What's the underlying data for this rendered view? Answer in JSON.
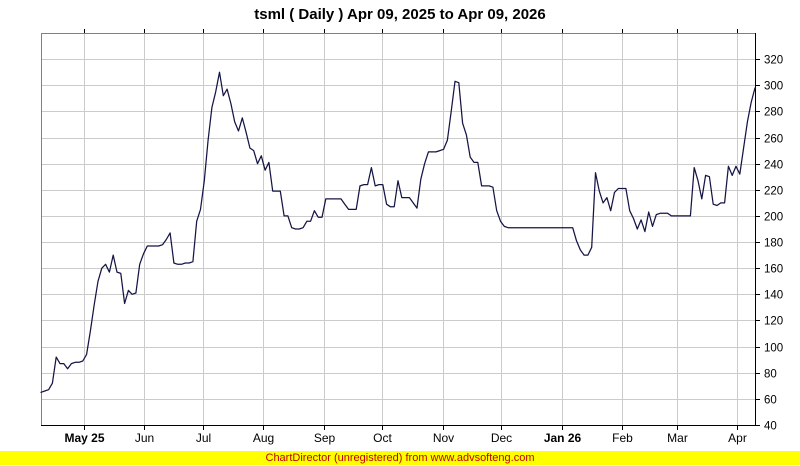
{
  "header": {
    "title": "tsml ( Daily ) Apr 09, 2025 to Apr 09, 2026"
  },
  "footer": {
    "text": "ChartDirector (unregistered) from www.advsofteng.com",
    "background_color": "#ffff00",
    "text_color": "#c00000"
  },
  "chart_data": {
    "type": "line",
    "title": "tsml ( Daily ) Apr 09, 2025 to Apr 09, 2026",
    "xlabel": "",
    "ylabel": "",
    "grid": true,
    "grid_color": "#cbcbcb",
    "background": "#ffffff",
    "border_top_left_color": "#808080",
    "axis_color": "#000000",
    "legend": "none",
    "y_axis": {
      "side": "right",
      "min": 40,
      "max": 340,
      "tick_interval": 20,
      "ticks": [
        40,
        60,
        80,
        100,
        120,
        140,
        160,
        180,
        200,
        220,
        240,
        260,
        280,
        300,
        320
      ]
    },
    "x_axis": {
      "range": "Apr 09, 2025 to Apr 09, 2026",
      "ticks": [
        {
          "label": "May 25",
          "bold": true,
          "pos": 0.0601
        },
        {
          "label": "Jun",
          "bold": false,
          "pos": 0.1448
        },
        {
          "label": "Jul",
          "bold": false,
          "pos": 0.2268
        },
        {
          "label": "Aug",
          "bold": false,
          "pos": 0.3115
        },
        {
          "label": "Sep",
          "bold": false,
          "pos": 0.3962
        },
        {
          "label": "Oct",
          "bold": false,
          "pos": 0.4781
        },
        {
          "label": "Nov",
          "bold": false,
          "pos": 0.5628
        },
        {
          "label": "Dec",
          "bold": false,
          "pos": 0.6448
        },
        {
          "label": "Jan 26",
          "bold": true,
          "pos": 0.7295
        },
        {
          "label": "Feb",
          "bold": false,
          "pos": 0.8142
        },
        {
          "label": "Mar",
          "bold": false,
          "pos": 0.8907
        },
        {
          "label": "Apr",
          "bold": false,
          "pos": 0.9754
        }
      ]
    },
    "series": [
      {
        "name": "tsml daily close",
        "color": "#151545",
        "values": [
          65,
          66,
          67,
          72,
          92,
          87,
          87,
          83,
          87,
          88,
          88,
          89,
          94,
          112,
          132,
          150,
          160,
          163,
          157,
          170,
          157,
          156,
          133,
          143,
          140,
          141,
          163,
          171,
          177,
          177,
          177,
          177,
          178,
          182,
          187,
          164,
          163,
          163,
          164,
          164,
          165,
          196,
          205,
          227,
          258,
          283,
          295,
          310,
          292,
          297,
          286,
          272,
          265,
          275,
          264,
          252,
          250,
          240,
          246,
          235,
          241,
          219,
          219,
          219,
          200,
          200,
          191,
          190,
          190,
          191,
          196,
          196,
          204,
          199,
          199,
          213,
          213,
          213,
          213,
          213,
          209,
          205,
          205,
          205,
          223,
          224,
          224,
          237,
          223,
          224,
          224,
          209,
          207,
          207,
          227,
          214,
          214,
          214,
          210,
          206,
          228,
          240,
          249,
          249,
          249,
          250,
          251,
          258,
          280,
          303,
          302,
          271,
          262,
          245,
          241,
          241,
          223,
          223,
          223,
          222,
          204,
          196,
          192,
          191,
          191,
          191,
          191,
          191,
          191,
          191,
          191,
          191,
          191,
          191,
          191,
          191,
          191,
          191,
          191,
          191,
          191,
          181,
          174,
          170,
          170,
          176,
          233,
          219,
          210,
          214,
          204,
          218,
          221,
          221,
          221,
          204,
          198,
          190,
          197,
          188,
          203,
          192,
          201,
          202,
          202,
          202,
          200,
          200,
          200,
          200,
          200,
          200,
          237,
          227,
          213,
          231,
          230,
          209,
          208,
          210,
          210,
          238,
          231,
          238,
          232,
          252,
          272,
          287,
          298
        ]
      }
    ]
  }
}
